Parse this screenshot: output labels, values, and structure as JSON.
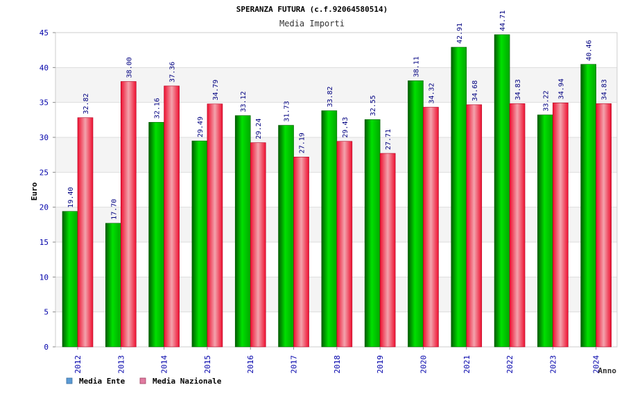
{
  "chart_data": {
    "type": "bar",
    "title": "SPERANZA FUTURA (c.f.92064580514)",
    "subtitle": "Media Importi",
    "xlabel": "Anno",
    "ylabel": "Euro",
    "ylim": [
      0,
      45
    ],
    "yticks": [
      0,
      5,
      10,
      15,
      20,
      25,
      30,
      35,
      40,
      45
    ],
    "grid": true,
    "legend_position": "bottom-left",
    "categories": [
      "2012",
      "2013",
      "2014",
      "2015",
      "2016",
      "2017",
      "2018",
      "2019",
      "2020",
      "2021",
      "2022",
      "2023",
      "2024"
    ],
    "series": [
      {
        "name": "Media Ente",
        "color": "#00c000",
        "legend_color": "#5b9bd5",
        "values": [
          19.4,
          17.7,
          32.16,
          29.49,
          33.12,
          31.73,
          33.82,
          32.55,
          38.11,
          42.91,
          44.71,
          33.22,
          40.46
        ],
        "labels": [
          "19.40",
          "17.70",
          "32.16",
          "29.49",
          "33.12",
          "31.73",
          "33.82",
          "32.55",
          "38.11",
          "42.91",
          "44.71",
          "33.22",
          "40.46"
        ]
      },
      {
        "name": "Media Nazionale",
        "color": "#f01030",
        "legend_color": "#e07ba0",
        "values": [
          32.82,
          38.0,
          37.36,
          34.79,
          29.24,
          27.19,
          29.43,
          27.71,
          34.32,
          34.68,
          34.83,
          34.94,
          34.83
        ],
        "labels": [
          "32.82",
          "38.00",
          "37.36",
          "34.79",
          "29.24",
          "27.19",
          "29.43",
          "27.71",
          "34.32",
          "34.68",
          "34.83",
          "34.94",
          "34.83"
        ]
      }
    ]
  }
}
